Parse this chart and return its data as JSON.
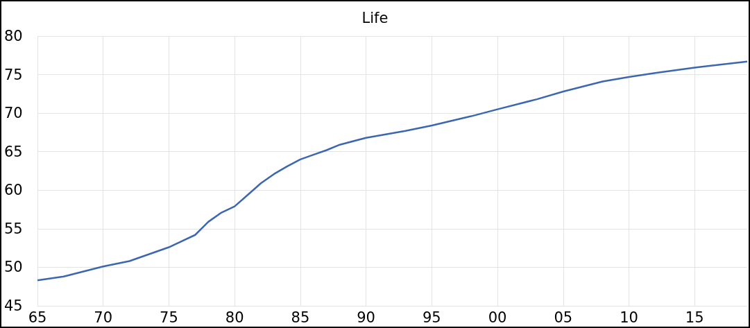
{
  "chart_data": {
    "type": "line",
    "title": "Life",
    "x": [
      1965,
      1967,
      1970,
      1972,
      1975,
      1977,
      1978,
      1979,
      1980,
      1981,
      1982,
      1983,
      1984,
      1985,
      1986,
      1987,
      1988,
      1990,
      1993,
      1995,
      1998,
      2000,
      2003,
      2005,
      2008,
      2010,
      2012,
      2015,
      2019
    ],
    "series": [
      {
        "color": "#3c67b0",
        "values": [
          48.3,
          48.8,
          50.1,
          50.8,
          52.6,
          54.2,
          55.9,
          57.1,
          57.9,
          59.4,
          60.9,
          62.1,
          63.1,
          64.0,
          64.6,
          65.2,
          65.9,
          66.8,
          67.7,
          68.4,
          69.6,
          70.5,
          71.8,
          72.8,
          74.1,
          74.7,
          75.2,
          75.9,
          76.7
        ]
      }
    ],
    "xlim": [
      1965,
      2019
    ],
    "xticks": [
      {
        "value": 1965,
        "label": "65"
      },
      {
        "value": 1970,
        "label": "70"
      },
      {
        "value": 1975,
        "label": "75"
      },
      {
        "value": 1980,
        "label": "80"
      },
      {
        "value": 1985,
        "label": "85"
      },
      {
        "value": 1990,
        "label": "90"
      },
      {
        "value": 1995,
        "label": "95"
      },
      {
        "value": 2000,
        "label": "00"
      },
      {
        "value": 2005,
        "label": "05"
      },
      {
        "value": 2010,
        "label": "10"
      },
      {
        "value": 2015,
        "label": "15"
      }
    ],
    "ylim": [
      45,
      80
    ],
    "yticks": [
      45,
      50,
      55,
      60,
      65,
      70,
      75,
      80
    ],
    "grid": true,
    "marker": "none",
    "line_style": "solid"
  }
}
